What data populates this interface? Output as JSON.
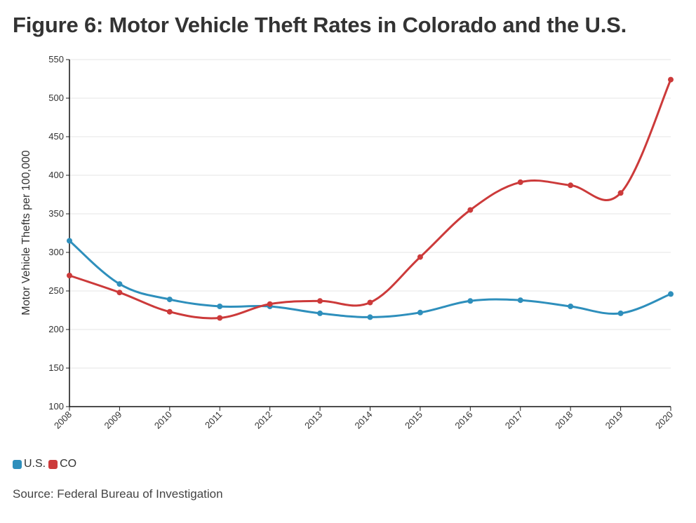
{
  "title": "Figure 6: Motor Vehicle Theft Rates in Colorado and the U.S.",
  "source": "Source: Federal Bureau of Investigation",
  "chart_data": {
    "type": "line",
    "title": "Figure 6: Motor Vehicle Theft Rates in Colorado and the U.S.",
    "xlabel": "",
    "ylabel": "Motor Vehicle Thefts per 100,000",
    "categories": [
      "2008",
      "2009",
      "2010",
      "2011",
      "2012",
      "2013",
      "2014",
      "2015",
      "2016",
      "2017",
      "2018",
      "2019",
      "2020"
    ],
    "ylim": [
      100,
      550
    ],
    "yticks": [
      100,
      150,
      200,
      250,
      300,
      350,
      400,
      450,
      500,
      550
    ],
    "grid": true,
    "legend_position": "bottom-left",
    "series": [
      {
        "name": "U.S.",
        "color": "#2e8fbc",
        "values": [
          315,
          259,
          239,
          230,
          230,
          221,
          216,
          222,
          237,
          238,
          230,
          221,
          246
        ]
      },
      {
        "name": "CO",
        "color": "#cc3a3a",
        "values": [
          270,
          248,
          223,
          215,
          233,
          237,
          235,
          294,
          355,
          391,
          387,
          377,
          524
        ]
      }
    ]
  }
}
